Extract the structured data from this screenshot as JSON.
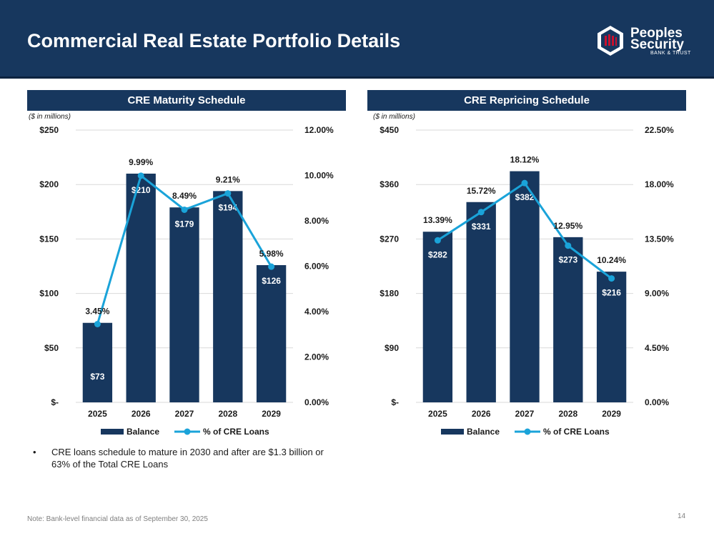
{
  "header": {
    "title": "Commercial Real Estate Portfolio Details",
    "logo": {
      "line1": "Peoples",
      "line2": "Security",
      "sub": "BANK & TRUST",
      "icon": "hexagon-logo-icon"
    }
  },
  "unit_note": "($ in millions)",
  "bullet": "CRE loans schedule to mature in 2030 and after are $1.3 billion or 63% of the Total CRE Loans",
  "footnote": "Note: Bank-level financial data as of September 30, 2025",
  "page_number": "14",
  "colors": {
    "navy": "#17375e",
    "bar": "#17375e",
    "line": "#1aa3d9"
  },
  "chart_data": [
    {
      "type": "bar",
      "title": "CRE Maturity Schedule",
      "categories": [
        "2025",
        "2026",
        "2027",
        "2028",
        "2029"
      ],
      "series": [
        {
          "name": "Balance",
          "type": "bar",
          "axis": "left",
          "values": [
            73,
            210,
            179,
            194,
            126
          ],
          "labels": [
            "$73",
            "$210",
            "$179",
            "$194",
            "$126"
          ]
        },
        {
          "name": "% of CRE Loans",
          "type": "line",
          "axis": "right",
          "values": [
            3.45,
            9.99,
            8.49,
            9.21,
            5.98
          ],
          "labels": [
            "3.45%",
            "9.99%",
            "8.49%",
            "9.21%",
            "5.98%"
          ]
        }
      ],
      "ylim": [
        0,
        250
      ],
      "y_ticks": [
        0,
        50,
        100,
        150,
        200,
        250
      ],
      "y_tick_labels": [
        "$-",
        "$50",
        "$100",
        "$150",
        "$200",
        "$250"
      ],
      "y2lim": [
        0,
        12
      ],
      "y2_ticks": [
        0,
        2,
        4,
        6,
        8,
        10,
        12
      ],
      "y2_tick_labels": [
        "0.00%",
        "2.00%",
        "4.00%",
        "6.00%",
        "8.00%",
        "10.00%",
        "12.00%"
      ],
      "grid": true,
      "legend": "bottom"
    },
    {
      "type": "bar",
      "title": "CRE Repricing Schedule",
      "categories": [
        "2025",
        "2026",
        "2027",
        "2028",
        "2029"
      ],
      "series": [
        {
          "name": "Balance",
          "type": "bar",
          "axis": "left",
          "values": [
            282,
            331,
            382,
            273,
            216
          ],
          "labels": [
            "$282",
            "$331",
            "$382",
            "$273",
            "$216"
          ]
        },
        {
          "name": "% of CRE Loans",
          "type": "line",
          "axis": "right",
          "values": [
            13.39,
            15.72,
            18.12,
            12.95,
            10.24
          ],
          "labels": [
            "13.39%",
            "15.72%",
            "18.12%",
            "12.95%",
            "10.24%"
          ]
        }
      ],
      "ylim": [
        0,
        450
      ],
      "y_ticks": [
        0,
        90,
        180,
        270,
        360,
        450
      ],
      "y_tick_labels": [
        "$-",
        "$90",
        "$180",
        "$270",
        "$360",
        "$450"
      ],
      "y2lim": [
        0,
        22.5
      ],
      "y2_ticks": [
        0,
        4.5,
        9,
        13.5,
        18,
        22.5
      ],
      "y2_tick_labels": [
        "0.00%",
        "4.50%",
        "9.00%",
        "13.50%",
        "18.00%",
        "22.50%"
      ],
      "grid": true,
      "legend": "bottom"
    }
  ]
}
